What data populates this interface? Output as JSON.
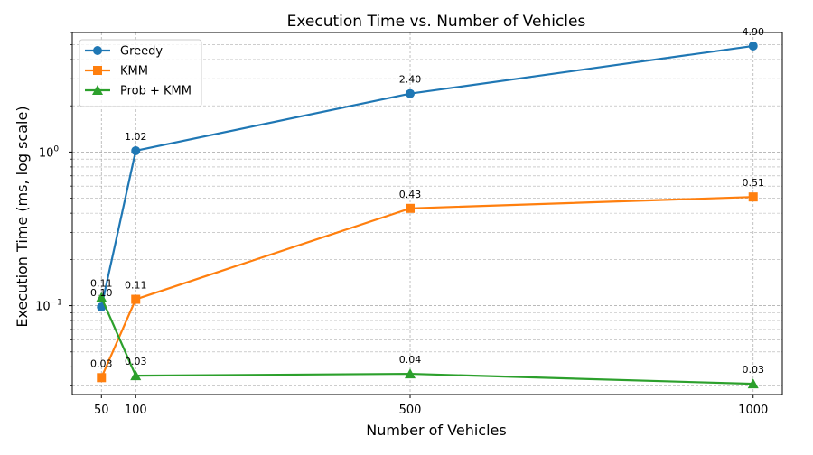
{
  "chart_data": {
    "type": "line",
    "title": "Execution Time vs. Number of Vehicles",
    "xlabel": "Number of Vehicles",
    "ylabel": "Execution Time (ms, log scale)",
    "yscale": "log",
    "xlim": [
      7.5,
      1042.5
    ],
    "ylim": [
      0.0264,
      6.0
    ],
    "x": [
      50,
      100,
      500,
      1000
    ],
    "xticks": [
      "50",
      "100",
      "500",
      "1000"
    ],
    "yticks": [
      {
        "value": 0.1,
        "base": "10",
        "exp": "−1"
      },
      {
        "value": 1,
        "base": "10",
        "exp": "0"
      }
    ],
    "grid": true,
    "legend_position": "top-left",
    "series": [
      {
        "name": "Greedy",
        "color": "#1f77b4",
        "marker": "circle",
        "values": [
          0.098,
          1.02,
          2.4,
          4.9
        ],
        "labels": [
          "0.10",
          "1.02",
          "2.40",
          "4.90"
        ]
      },
      {
        "name": "KMM",
        "color": "#ff7f0e",
        "marker": "square",
        "values": [
          0.034,
          0.11,
          0.43,
          0.51
        ],
        "labels": [
          "0.03",
          "0.11",
          "0.43",
          "0.51"
        ]
      },
      {
        "name": "Prob + KMM",
        "color": "#2ca02c",
        "marker": "triangle",
        "values": [
          0.113,
          0.035,
          0.036,
          0.031
        ],
        "labels": [
          "0.11",
          "0.03",
          "0.04",
          "0.03"
        ]
      }
    ]
  }
}
